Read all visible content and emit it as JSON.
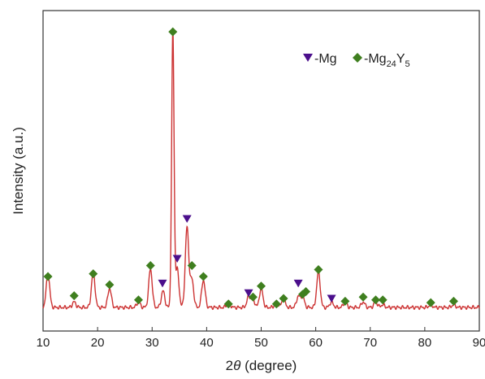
{
  "chart_data": {
    "type": "line",
    "xlabel_prefix": "2",
    "xlabel_theta": "θ",
    "xlabel_suffix": " (degree)",
    "ylabel": "Intensity (a.u.)",
    "xlim": [
      10,
      90
    ],
    "xticks": [
      10,
      20,
      30,
      40,
      50,
      60,
      70,
      80,
      90
    ],
    "yticks_shown": false,
    "grid": false,
    "line_color": "#cc3333",
    "baseline": 0.03,
    "peaks": [
      {
        "x": 10.9,
        "h": 0.12
      },
      {
        "x": 15.7,
        "h": 0.02
      },
      {
        "x": 19.2,
        "h": 0.13
      },
      {
        "x": 22.2,
        "h": 0.07
      },
      {
        "x": 27.5,
        "h": 0.02
      },
      {
        "x": 29.7,
        "h": 0.14
      },
      {
        "x": 32.0,
        "h": 0.06
      },
      {
        "x": 33.8,
        "h": 1.0
      },
      {
        "x": 34.6,
        "h": 0.14
      },
      {
        "x": 36.4,
        "h": 0.29
      },
      {
        "x": 37.3,
        "h": 0.1
      },
      {
        "x": 39.4,
        "h": 0.1
      },
      {
        "x": 44.0,
        "h": 0.02
      },
      {
        "x": 47.7,
        "h": 0.04
      },
      {
        "x": 48.5,
        "h": 0.03
      },
      {
        "x": 50.0,
        "h": 0.07
      },
      {
        "x": 52.8,
        "h": 0.02
      },
      {
        "x": 54.1,
        "h": 0.03
      },
      {
        "x": 56.8,
        "h": 0.04
      },
      {
        "x": 57.6,
        "h": 0.04
      },
      {
        "x": 60.5,
        "h": 0.13
      },
      {
        "x": 62.9,
        "h": 0.02
      },
      {
        "x": 65.4,
        "h": 0.02
      },
      {
        "x": 68.7,
        "h": 0.02
      },
      {
        "x": 71.0,
        "h": 0.02
      },
      {
        "x": 72.3,
        "h": 0.01
      },
      {
        "x": 81.1,
        "h": 0.01
      },
      {
        "x": 85.3,
        "h": 0.01
      }
    ],
    "mg_markers": [
      {
        "x": 31.9,
        "y": 0.085
      },
      {
        "x": 34.6,
        "y": 0.175
      },
      {
        "x": 36.4,
        "y": 0.32
      },
      {
        "x": 47.7,
        "y": 0.05
      },
      {
        "x": 56.8,
        "y": 0.085
      },
      {
        "x": 62.9,
        "y": 0.03
      }
    ],
    "mg24y5_markers": [
      {
        "x": 10.9,
        "y": 0.11
      },
      {
        "x": 15.7,
        "y": 0.04
      },
      {
        "x": 19.2,
        "y": 0.12
      },
      {
        "x": 22.2,
        "y": 0.08
      },
      {
        "x": 27.5,
        "y": 0.025
      },
      {
        "x": 29.7,
        "y": 0.15
      },
      {
        "x": 33.8,
        "y": 1.0
      },
      {
        "x": 37.3,
        "y": 0.15
      },
      {
        "x": 39.4,
        "y": 0.11
      },
      {
        "x": 44.0,
        "y": 0.01
      },
      {
        "x": 48.5,
        "y": 0.035
      },
      {
        "x": 50.0,
        "y": 0.075
      },
      {
        "x": 52.8,
        "y": 0.01
      },
      {
        "x": 54.1,
        "y": 0.03
      },
      {
        "x": 57.6,
        "y": 0.045
      },
      {
        "x": 58.2,
        "y": 0.055
      },
      {
        "x": 60.5,
        "y": 0.135
      },
      {
        "x": 65.4,
        "y": 0.02
      },
      {
        "x": 68.7,
        "y": 0.035
      },
      {
        "x": 71.0,
        "y": 0.025
      },
      {
        "x": 72.3,
        "y": 0.025
      },
      {
        "x": 81.1,
        "y": 0.015
      },
      {
        "x": 85.3,
        "y": 0.02
      }
    ],
    "legend": {
      "placement": "top-right",
      "mg_label": "-Mg",
      "mg24y5_label_main": "-Mg",
      "mg24y5_sub1": "24",
      "mg24y5_mid": "Y",
      "mg24y5_sub2": "5",
      "mg_color": "#4b0f8c",
      "mg24y5_color": "#3f7f1f"
    }
  }
}
